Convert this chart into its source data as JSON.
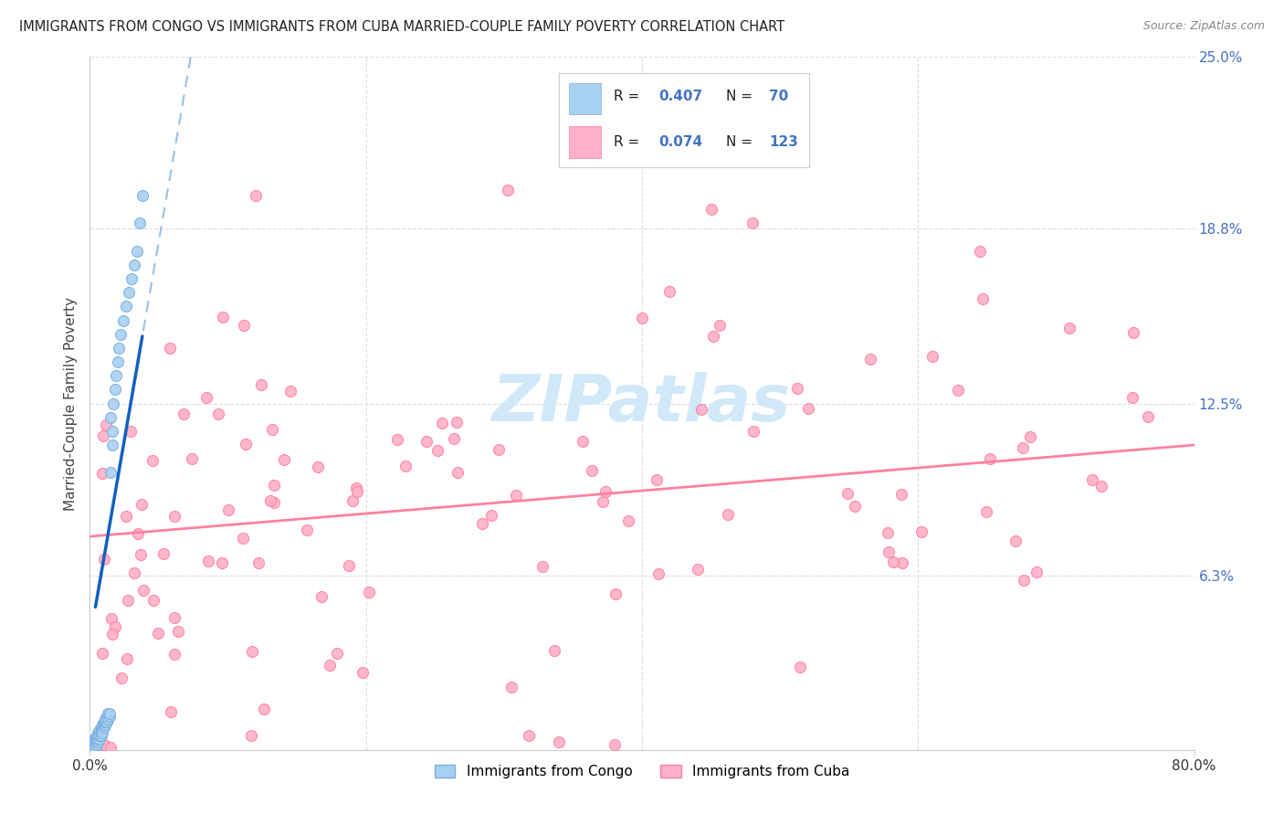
{
  "title": "IMMIGRANTS FROM CONGO VS IMMIGRANTS FROM CUBA MARRIED-COUPLE FAMILY POVERTY CORRELATION CHART",
  "source": "Source: ZipAtlas.com",
  "ylabel": "Married-Couple Family Poverty",
  "xlim": [
    0.0,
    0.8
  ],
  "ylim": [
    0.0,
    0.25
  ],
  "xtick_labels": [
    "0.0%",
    "80.0%"
  ],
  "ytick_labels_right": [
    "6.3%",
    "12.5%",
    "18.8%",
    "25.0%"
  ],
  "ytick_positions_right": [
    0.063,
    0.125,
    0.188,
    0.25
  ],
  "xtick_positions": [
    0.0,
    0.8
  ],
  "congo_fill": "#a8d0f0",
  "congo_edge": "#7ab0e0",
  "cuba_fill": "#ffb0c8",
  "cuba_edge": "#ff80a0",
  "trend_congo_solid": "#1060c0",
  "trend_congo_dash": "#80b0e0",
  "trend_cuba": "#ff80a0",
  "watermark_color": "#d0e8f8",
  "legend_label_congo": "Immigrants from Congo",
  "legend_label_cuba": "Immigrants from Cuba",
  "grid_color": "#dddddd",
  "spine_color": "#cccccc",
  "right_tick_color": "#4472c4",
  "title_color": "#222222",
  "source_color": "#888888",
  "R_congo": 0.407,
  "N_congo": 70,
  "R_cuba": 0.074,
  "N_cuba": 123,
  "congo_trend_x0": 0.0,
  "congo_trend_y0": 0.04,
  "congo_trend_x1": 0.04,
  "congo_trend_y1": 0.155,
  "cuba_trend_x0": 0.0,
  "cuba_trend_y0": 0.077,
  "cuba_trend_x1": 0.8,
  "cuba_trend_y1": 0.11
}
